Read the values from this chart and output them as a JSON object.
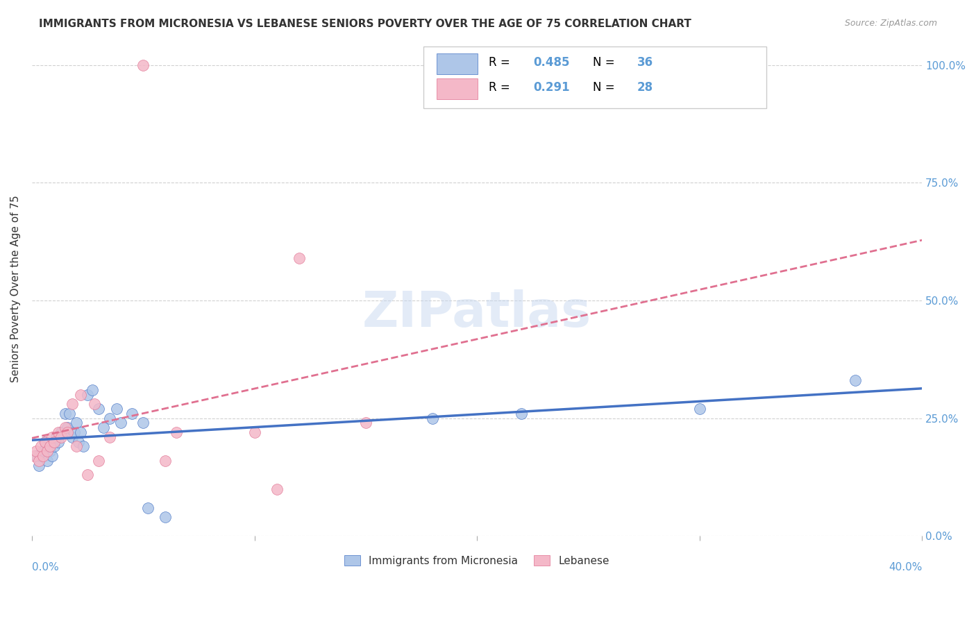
{
  "title": "IMMIGRANTS FROM MICRONESIA VS LEBANESE SENIORS POVERTY OVER THE AGE OF 75 CORRELATION CHART",
  "source": "Source: ZipAtlas.com",
  "ylabel": "Seniors Poverty Over the Age of 75",
  "blue_R": 0.485,
  "blue_N": 36,
  "pink_R": 0.291,
  "pink_N": 28,
  "blue_color": "#aec6e8",
  "pink_color": "#f4b8c8",
  "blue_line_color": "#4472c4",
  "pink_line_color": "#e07090",
  "blue_scatter": [
    [
      0.002,
      0.17
    ],
    [
      0.003,
      0.15
    ],
    [
      0.004,
      0.17
    ],
    [
      0.005,
      0.18
    ],
    [
      0.006,
      0.2
    ],
    [
      0.007,
      0.16
    ],
    [
      0.008,
      0.18
    ],
    [
      0.009,
      0.17
    ],
    [
      0.01,
      0.19
    ],
    [
      0.011,
      0.21
    ],
    [
      0.012,
      0.2
    ],
    [
      0.013,
      0.22
    ],
    [
      0.015,
      0.26
    ],
    [
      0.016,
      0.23
    ],
    [
      0.017,
      0.26
    ],
    [
      0.018,
      0.21
    ],
    [
      0.019,
      0.22
    ],
    [
      0.02,
      0.24
    ],
    [
      0.021,
      0.2
    ],
    [
      0.022,
      0.22
    ],
    [
      0.023,
      0.19
    ],
    [
      0.025,
      0.3
    ],
    [
      0.027,
      0.31
    ],
    [
      0.03,
      0.27
    ],
    [
      0.032,
      0.23
    ],
    [
      0.035,
      0.25
    ],
    [
      0.038,
      0.27
    ],
    [
      0.04,
      0.24
    ],
    [
      0.045,
      0.26
    ],
    [
      0.05,
      0.24
    ],
    [
      0.052,
      0.06
    ],
    [
      0.06,
      0.04
    ],
    [
      0.18,
      0.25
    ],
    [
      0.22,
      0.26
    ],
    [
      0.3,
      0.27
    ],
    [
      0.37,
      0.33
    ]
  ],
  "pink_scatter": [
    [
      0.001,
      0.17
    ],
    [
      0.002,
      0.18
    ],
    [
      0.003,
      0.16
    ],
    [
      0.004,
      0.19
    ],
    [
      0.005,
      0.17
    ],
    [
      0.006,
      0.2
    ],
    [
      0.007,
      0.18
    ],
    [
      0.008,
      0.19
    ],
    [
      0.009,
      0.21
    ],
    [
      0.01,
      0.2
    ],
    [
      0.012,
      0.22
    ],
    [
      0.013,
      0.21
    ],
    [
      0.015,
      0.23
    ],
    [
      0.016,
      0.22
    ],
    [
      0.018,
      0.28
    ],
    [
      0.02,
      0.19
    ],
    [
      0.022,
      0.3
    ],
    [
      0.025,
      0.13
    ],
    [
      0.028,
      0.28
    ],
    [
      0.03,
      0.16
    ],
    [
      0.035,
      0.21
    ],
    [
      0.06,
      0.16
    ],
    [
      0.065,
      0.22
    ],
    [
      0.1,
      0.22
    ],
    [
      0.11,
      0.1
    ],
    [
      0.12,
      0.59
    ],
    [
      0.15,
      0.24
    ],
    [
      0.05,
      1.0
    ]
  ],
  "xlim": [
    0,
    0.4
  ],
  "ylim": [
    0,
    1.05
  ],
  "watermark": "ZIPatlas",
  "background_color": "#ffffff",
  "grid_color": "#d0d0d0",
  "accent_color": "#5b9bd5"
}
